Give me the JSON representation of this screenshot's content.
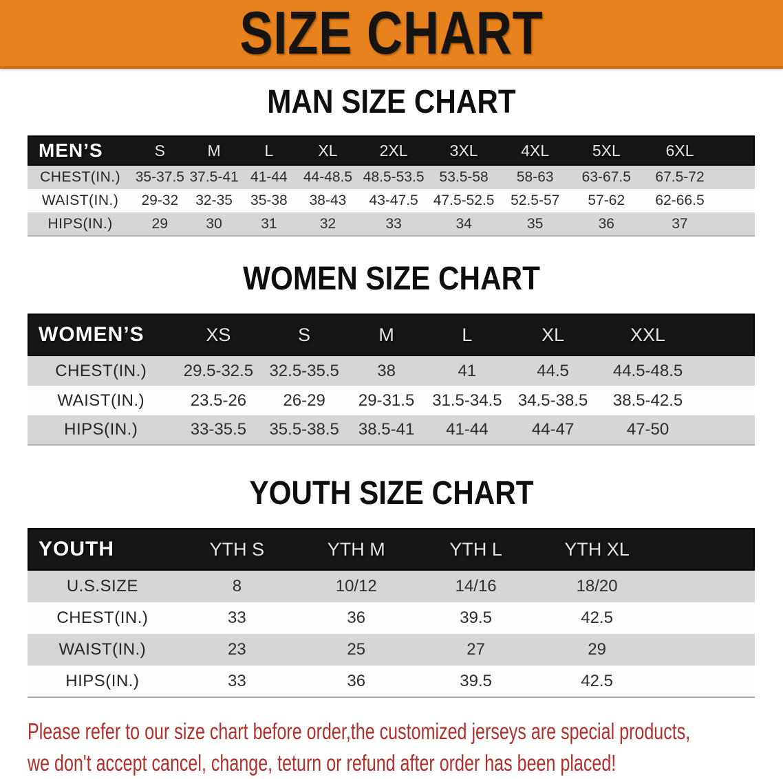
{
  "banner": {
    "title": "SIZE CHART",
    "bg_color": "#e8821c",
    "text_color": "#161410"
  },
  "sections": [
    {
      "heading": "MAN SIZE CHART",
      "table": {
        "corner_label": "MEN’S",
        "columns": [
          "S",
          "M",
          "L",
          "XL",
          "2XL",
          "3XL",
          "4XL",
          "5XL",
          "6XL"
        ],
        "rows": [
          {
            "label": "CHEST(IN.)",
            "values": [
              "35-37.5",
              "37.5-41",
              "41-44",
              "44-48.5",
              "48.5-53.5",
              "53.5-58",
              "58-63",
              "63-67.5",
              "67.5-72"
            ]
          },
          {
            "label": "WAIST(IN.)",
            "values": [
              "29-32",
              "32-35",
              "35-38",
              "38-43",
              "43-47.5",
              "47.5-52.5",
              "52.5-57",
              "57-62",
              "62-66.5"
            ]
          },
          {
            "label": "HIPS(IN.)",
            "values": [
              "29",
              "30",
              "31",
              "32",
              "33",
              "34",
              "35",
              "36",
              "37"
            ]
          }
        ]
      }
    },
    {
      "heading": "WOMEN SIZE CHART",
      "table": {
        "corner_label": "WOMEN’S",
        "columns": [
          "XS",
          "S",
          "M",
          "L",
          "XL",
          "XXL"
        ],
        "rows": [
          {
            "label": "CHEST(IN.)",
            "values": [
              "29.5-32.5",
              "32.5-35.5",
              "38",
              "41",
              "44.5",
              "44.5-48.5"
            ]
          },
          {
            "label": "WAIST(IN.)",
            "values": [
              "23.5-26",
              "26-29",
              "29-31.5",
              "31.5-34.5",
              "34.5-38.5",
              "38.5-42.5"
            ]
          },
          {
            "label": "HIPS(IN.)",
            "values": [
              "33-35.5",
              "35.5-38.5",
              "38.5-41",
              "41-44",
              "44-47",
              "47-50"
            ]
          }
        ]
      }
    },
    {
      "heading": "YOUTH SIZE CHART",
      "table": {
        "corner_label": "YOUTH",
        "columns": [
          "YTH S",
          "YTH M",
          "YTH L",
          "YTH XL"
        ],
        "rows": [
          {
            "label": "U.S.SIZE",
            "values": [
              "8",
              "10/12",
              "14/16",
              "18/20"
            ]
          },
          {
            "label": "CHEST(IN.)",
            "values": [
              "33",
              "36",
              "39.5",
              "42.5"
            ]
          },
          {
            "label": "WAIST(IN.)",
            "values": [
              "23",
              "25",
              "27",
              "29"
            ]
          },
          {
            "label": "HIPS(IN.)",
            "values": [
              "33",
              "36",
              "39.5",
              "42.5"
            ]
          }
        ]
      }
    }
  ],
  "disclaimer": {
    "color": "#b0302a",
    "lines": [
      "Please refer to our size chart before order,the customized jerseys are special products,",
      "we don't accept cancel, change, teturn or refund after order has been placed!"
    ]
  }
}
